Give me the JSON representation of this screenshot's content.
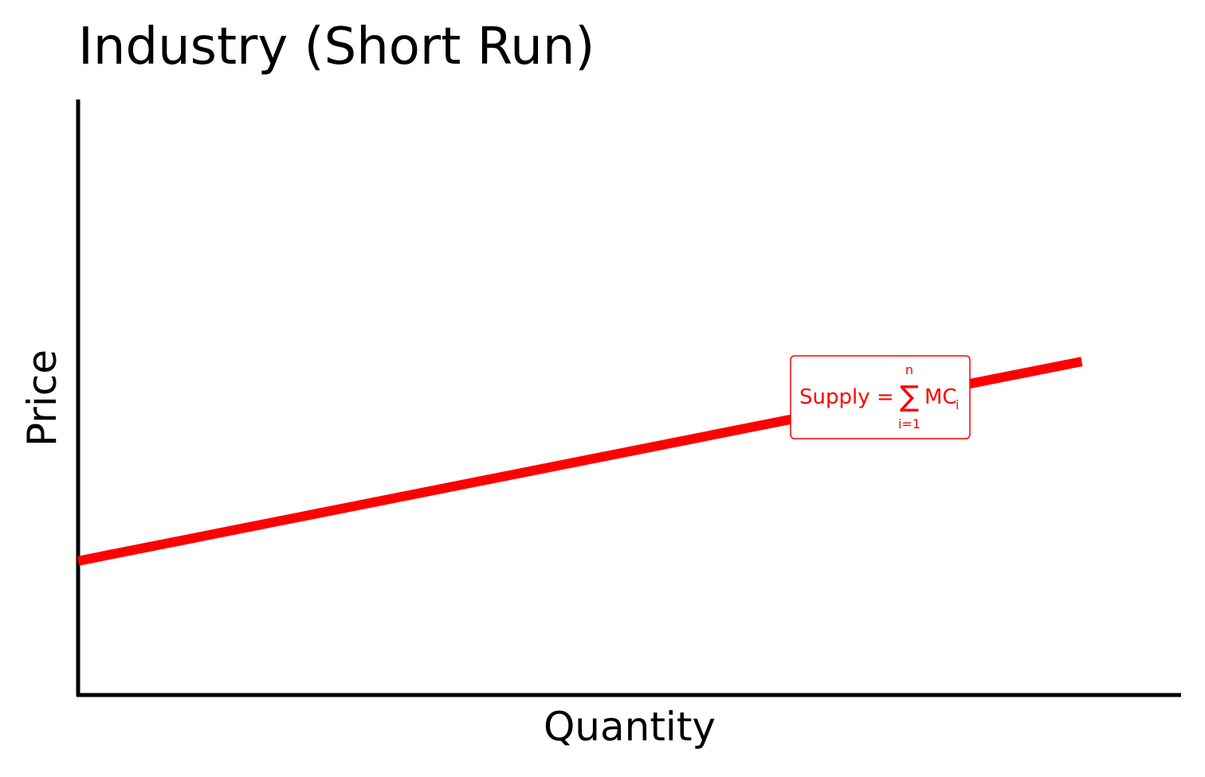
{
  "chart_data": {
    "type": "line",
    "title": "Industry (Short Run)",
    "xlabel": "Quantity",
    "ylabel": "Price",
    "xlim": [
      0,
      10
    ],
    "ylim": [
      0,
      10
    ],
    "grid": false,
    "series": [
      {
        "name": "Supply",
        "color": "#ff0000",
        "x": [
          0,
          9.1
        ],
        "y": [
          2.25,
          5.6
        ]
      }
    ],
    "annotation": {
      "lead": "Supply = ",
      "sum_symbol": "∑",
      "upper_limit": "n",
      "lower_limit": "i=1",
      "term": "MC",
      "subscript": "i",
      "color": "#ff0000",
      "at": {
        "x": 7.3,
        "y": 5.4
      }
    }
  }
}
